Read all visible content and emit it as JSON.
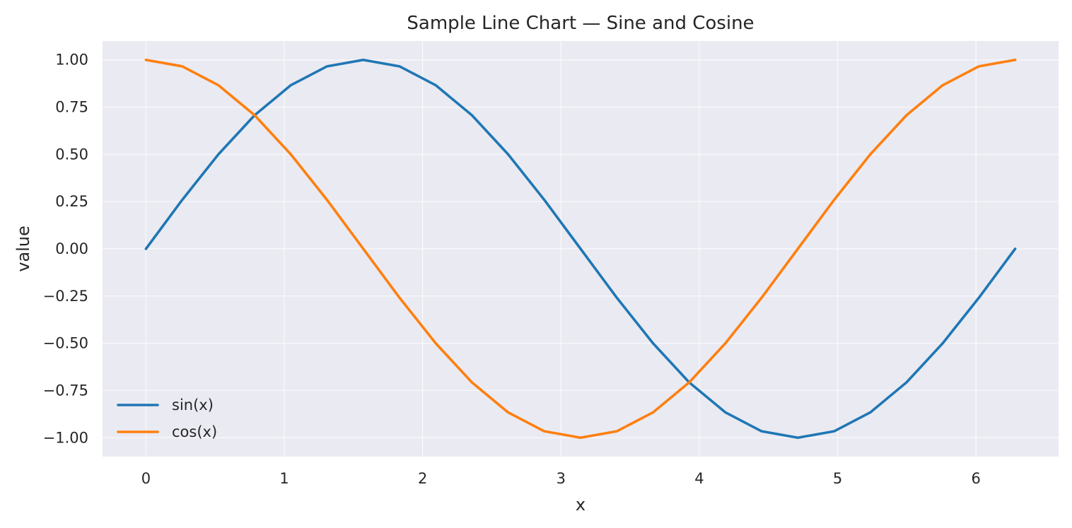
{
  "chart_data": {
    "type": "line",
    "title": "Sample Line Chart — Sine and Cosine",
    "xlabel": "x",
    "ylabel": "value",
    "xlim": [
      -0.314,
      6.597
    ],
    "ylim": [
      -1.1,
      1.1
    ],
    "x_ticks": [
      0,
      1,
      2,
      3,
      4,
      5,
      6
    ],
    "x_tick_labels": [
      "0",
      "1",
      "2",
      "3",
      "4",
      "5",
      "6"
    ],
    "y_ticks": [
      1.0,
      0.75,
      0.5,
      0.25,
      0.0,
      -0.25,
      -0.5,
      -0.75,
      -1.0
    ],
    "y_tick_labels": [
      "1.00",
      "0.75",
      "0.50",
      "0.25",
      "0.00",
      "−0.25",
      "−0.50",
      "−0.75",
      "−1.00"
    ],
    "grid": true,
    "legend_position": "lower-left",
    "background_color": "#eaeaf2",
    "x": [
      0,
      0.2618,
      0.5236,
      0.7854,
      1.0472,
      1.309,
      1.5708,
      1.8326,
      2.0944,
      2.3562,
      2.618,
      2.8798,
      3.1416,
      3.4034,
      3.6652,
      3.927,
      4.1888,
      4.4506,
      4.7124,
      4.9742,
      5.236,
      5.4978,
      5.7596,
      6.0214,
      6.2832
    ],
    "series": [
      {
        "name": "sin(x)",
        "color": "#1f77b4",
        "values": [
          0,
          0.2588,
          0.5,
          0.7071,
          0.866,
          0.9659,
          1,
          0.9659,
          0.866,
          0.7071,
          0.5,
          0.2588,
          0,
          -0.2588,
          -0.5,
          -0.7071,
          -0.866,
          -0.9659,
          -1,
          -0.9659,
          -0.866,
          -0.7071,
          -0.5,
          -0.2588,
          0
        ]
      },
      {
        "name": "cos(x)",
        "color": "#ff7f0e",
        "values": [
          1,
          0.9659,
          0.866,
          0.7071,
          0.5,
          0.2588,
          0,
          -0.2588,
          -0.5,
          -0.7071,
          -0.866,
          -0.9659,
          -1,
          -0.9659,
          -0.866,
          -0.7071,
          -0.5,
          -0.2588,
          0,
          0.2588,
          0.5,
          0.7071,
          0.866,
          0.9659,
          1
        ]
      }
    ]
  }
}
